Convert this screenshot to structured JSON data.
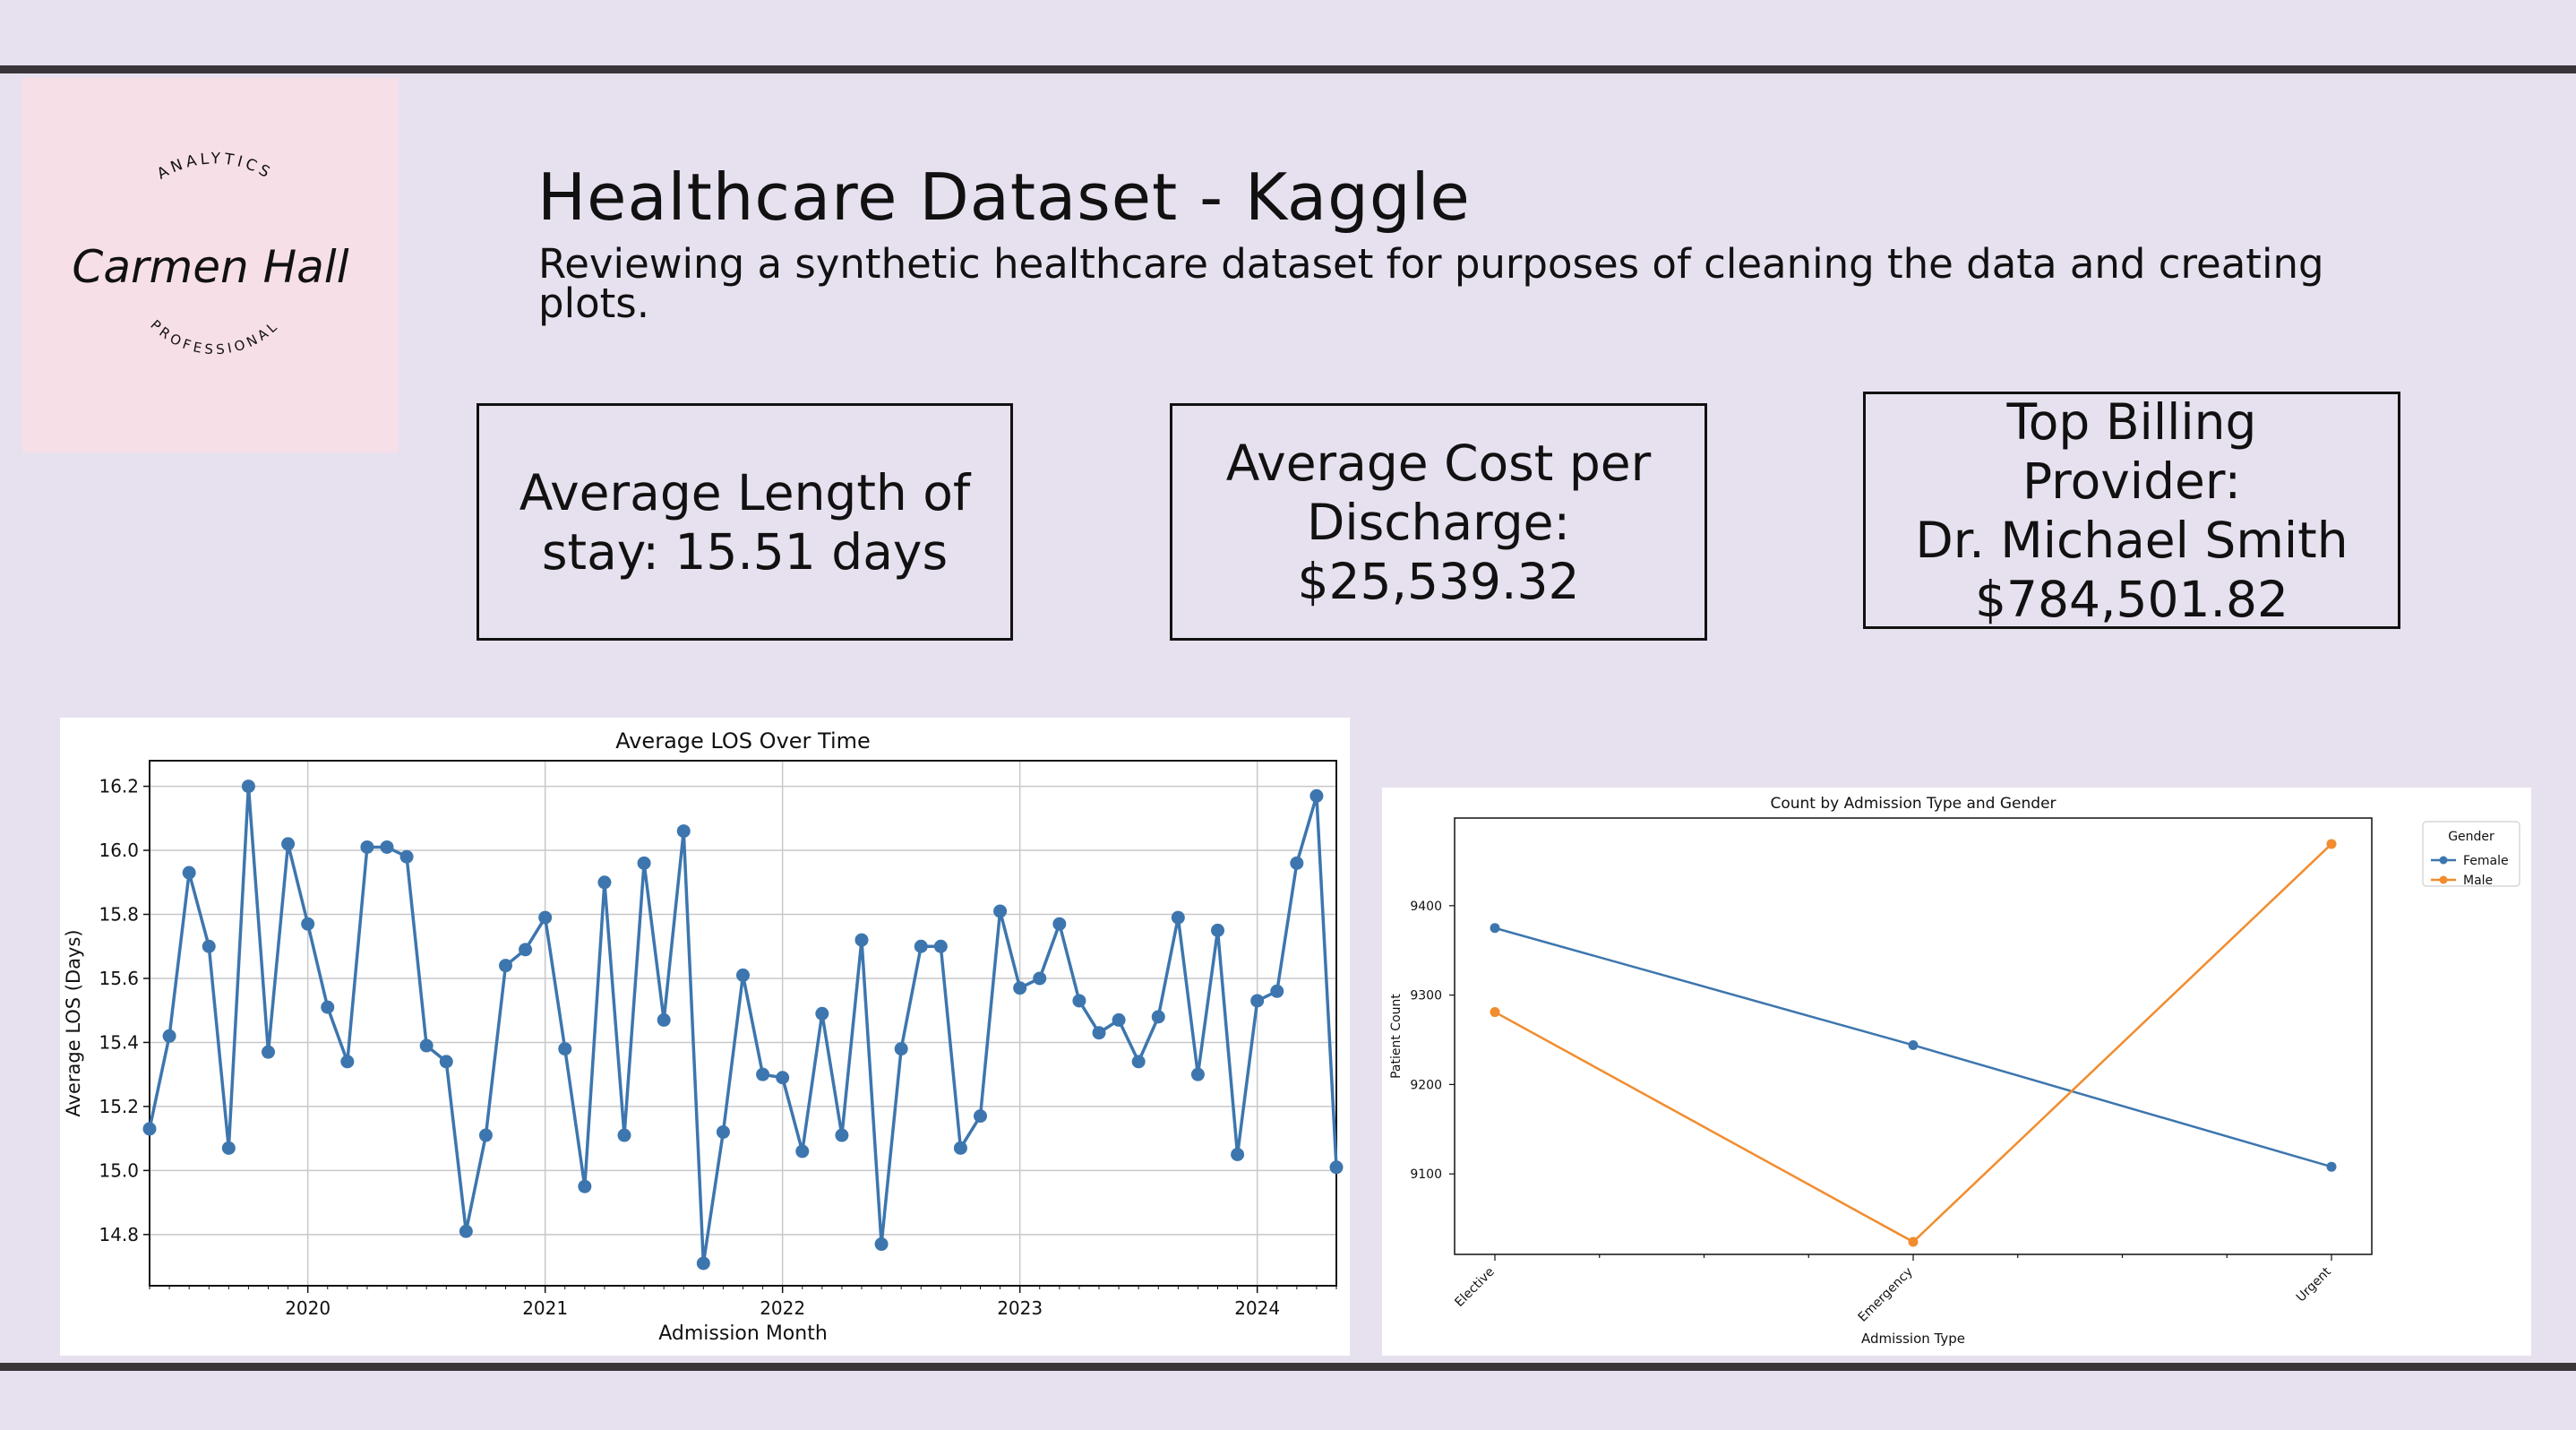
{
  "header": {
    "title": "Healthcare Dataset - Kaggle",
    "subtitle": "Reviewing a synthetic healthcare dataset for purposes of cleaning the data and creating plots."
  },
  "logo": {
    "top_text": "ANALYTICS",
    "name": "Carmen Hall",
    "bottom_text": "PROFESSIONAL",
    "background": "#f7dfe7"
  },
  "kpis": {
    "los": "Average Length of\nstay: 15.51 days",
    "cost": "Average Cost per\nDischarge:\n$25,539.32",
    "provider": "Top Billing\nProvider:\nDr. Michael Smith\n$784,501.82"
  },
  "colors": {
    "background": "#e7e1ef",
    "rule": "#3a3538",
    "blue": "#3d76ae",
    "orange": "#f28c2e"
  },
  "chart_data": [
    {
      "type": "line",
      "title": "Average LOS Over Time",
      "xlabel": "Admission Month",
      "ylabel": "Average LOS (Days)",
      "x_ticks": [
        "2020",
        "2021",
        "2022",
        "2023",
        "2024"
      ],
      "y_ticks": [
        "14.8",
        "15.0",
        "15.2",
        "15.4",
        "15.6",
        "15.8",
        "16.0",
        "16.2"
      ],
      "xlim": [
        "2019-05",
        "2024-05"
      ],
      "ylim": [
        14.64,
        16.28
      ],
      "grid": true,
      "color": "#3d76ae",
      "x": [
        "2019-05",
        "2019-06",
        "2019-07",
        "2019-08",
        "2019-09",
        "2019-10",
        "2019-11",
        "2019-12",
        "2020-01",
        "2020-02",
        "2020-03",
        "2020-04",
        "2020-05",
        "2020-06",
        "2020-07",
        "2020-08",
        "2020-09",
        "2020-10",
        "2020-11",
        "2020-12",
        "2021-01",
        "2021-02",
        "2021-03",
        "2021-04",
        "2021-05",
        "2021-06",
        "2021-07",
        "2021-08",
        "2021-09",
        "2021-10",
        "2021-11",
        "2021-12",
        "2022-01",
        "2022-02",
        "2022-03",
        "2022-04",
        "2022-05",
        "2022-06",
        "2022-07",
        "2022-08",
        "2022-09",
        "2022-10",
        "2022-11",
        "2022-12",
        "2023-01",
        "2023-02",
        "2023-03",
        "2023-04",
        "2023-05",
        "2023-06",
        "2023-07",
        "2023-08",
        "2023-09",
        "2023-10",
        "2023-11",
        "2023-12",
        "2024-01",
        "2024-02",
        "2024-03",
        "2024-04",
        "2024-05"
      ],
      "values": [
        15.13,
        15.42,
        15.93,
        15.7,
        15.07,
        16.2,
        15.37,
        16.02,
        15.77,
        15.51,
        15.34,
        16.01,
        16.01,
        15.98,
        15.39,
        15.34,
        14.81,
        15.11,
        15.64,
        15.69,
        15.79,
        15.38,
        14.95,
        15.9,
        15.11,
        15.96,
        15.47,
        16.06,
        14.71,
        15.12,
        15.61,
        15.3,
        15.29,
        15.06,
        15.49,
        15.11,
        15.72,
        14.77,
        15.38,
        15.7,
        15.7,
        15.07,
        15.17,
        15.81,
        15.57,
        15.6,
        15.77,
        15.53,
        15.43,
        15.47,
        15.34,
        15.48,
        15.79,
        15.3,
        15.75,
        15.05,
        15.53,
        15.56,
        15.96,
        16.17,
        15.01
      ]
    },
    {
      "type": "line",
      "title": "Count by Admission Type and Gender",
      "xlabel": "Admission Type",
      "ylabel": "Patient Count",
      "categories": [
        "Elective",
        "Emergency",
        "Urgent"
      ],
      "y_ticks": [
        "9100",
        "9200",
        "9300",
        "9400"
      ],
      "ylim": [
        9010,
        9498
      ],
      "legend": {
        "title": "Gender",
        "position": "outside-top-right"
      },
      "series": [
        {
          "name": "Female",
          "values": [
            9375,
            9244,
            9108
          ],
          "color": "#3d76ae"
        },
        {
          "name": "Male",
          "values": [
            9281,
            9024,
            9469
          ],
          "color": "#f28c2e"
        }
      ]
    }
  ]
}
